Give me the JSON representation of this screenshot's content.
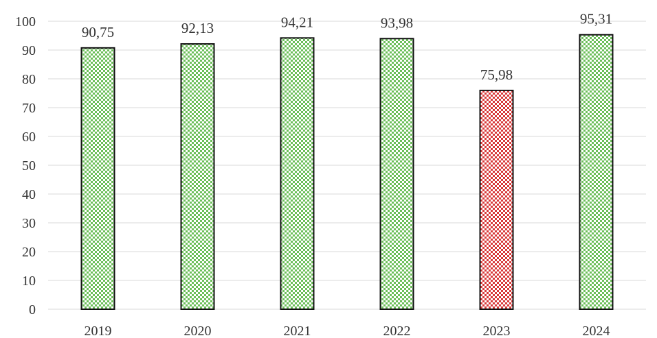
{
  "chart_data": {
    "type": "bar",
    "categories": [
      "2019",
      "2020",
      "2021",
      "2022",
      "2023",
      "2024"
    ],
    "values": [
      90.75,
      92.13,
      94.21,
      93.98,
      75.98,
      95.31
    ],
    "value_labels": [
      "90,75",
      "92,13",
      "94,21",
      "93,98",
      "75,98",
      "95,31"
    ],
    "title": "",
    "xlabel": "",
    "ylabel": "",
    "ylim": [
      0,
      100
    ],
    "yticks": [
      "0",
      "10",
      "20",
      "30",
      "40",
      "50",
      "60",
      "70",
      "80",
      "90",
      "100"
    ],
    "grid": true,
    "legend": "none",
    "bar_colors": [
      "green",
      "green",
      "green",
      "green",
      "red",
      "green"
    ]
  },
  "colors": {
    "green": "#6cbf5a",
    "red": "#d83a3a",
    "pattern_background": "#ffffff",
    "gridline": "#d9d9d9"
  }
}
